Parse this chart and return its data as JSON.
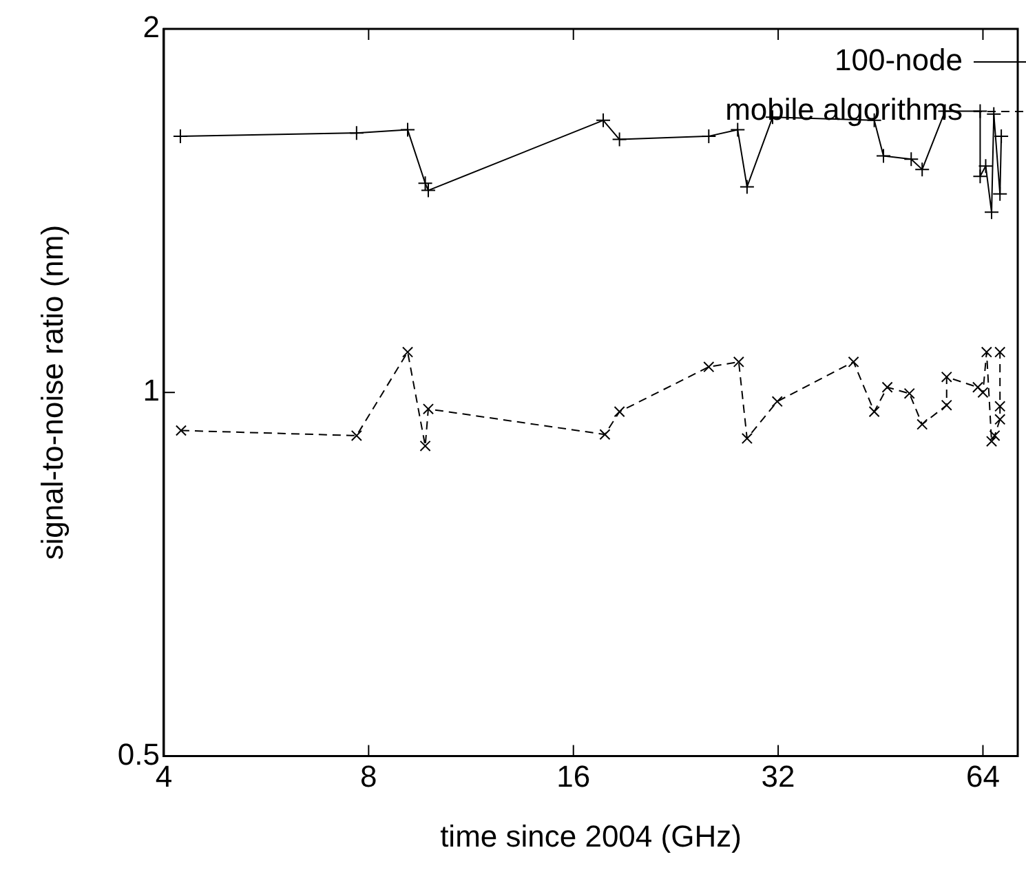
{
  "chart_data": {
    "type": "line",
    "xlabel": "time since 2004 (GHz)",
    "ylabel": "signal-to-noise ratio (nm)",
    "log": "xy",
    "xlim": [
      4,
      72
    ],
    "xticks": [
      4,
      8,
      16,
      32,
      64
    ],
    "ylim": [
      0.5,
      2
    ],
    "yticks": [
      0.5,
      1,
      2
    ],
    "grid": false,
    "legend": "top right",
    "series": [
      {
        "name": "100-node",
        "color": "#000000",
        "marker": "plus",
        "line_style": "solid",
        "x": [
          4.23,
          7.68,
          9.13,
          9.69,
          9.79,
          17.7,
          18.7,
          25.3,
          27.9,
          28.8,
          31.4,
          44.3,
          45.7,
          50.2,
          52.1,
          56.3,
          63.4,
          63.4,
          64.6,
          65.9,
          66.4,
          67.8,
          68.1
        ],
        "values": [
          1.63,
          1.64,
          1.65,
          1.49,
          1.47,
          1.68,
          1.62,
          1.63,
          1.65,
          1.48,
          1.69,
          1.68,
          1.57,
          1.56,
          1.53,
          1.71,
          1.71,
          1.51,
          1.54,
          1.41,
          1.7,
          1.46,
          1.63
        ]
      },
      {
        "name": "mobile algorithms",
        "color": "#000000",
        "marker": "cross",
        "line_style": "dashed",
        "x": [
          4.24,
          7.68,
          9.13,
          9.69,
          9.79,
          17.8,
          18.7,
          25.3,
          28.0,
          28.8,
          31.9,
          41.3,
          44.3,
          46.3,
          49.9,
          52.1,
          56.6,
          56.6,
          62.9,
          64.0,
          64.8,
          65.9,
          66.6,
          67.8,
          67.8,
          67.8
        ],
        "values": [
          0.93,
          0.921,
          1.08,
          0.903,
          0.969,
          0.923,
          0.964,
          1.05,
          1.06,
          0.916,
          0.983,
          1.06,
          0.964,
          1.01,
          0.998,
          0.941,
          0.976,
          1.03,
          1.01,
          1.0,
          1.08,
          0.911,
          0.921,
          0.95,
          0.974,
          1.08
        ]
      }
    ]
  }
}
